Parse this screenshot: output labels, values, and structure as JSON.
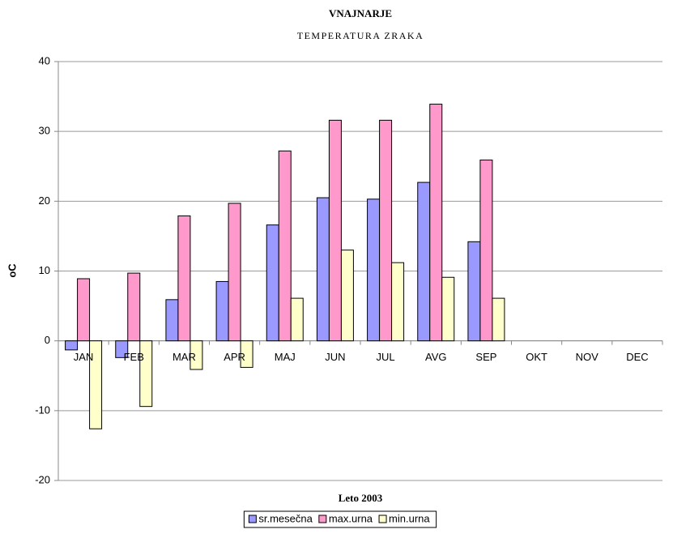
{
  "chart_data": {
    "type": "bar",
    "title": "VNAJNARJE",
    "subtitle": "TEMPERATURA ZRAKA",
    "x_label": "Leto 2003",
    "y_label": "oC",
    "categories": [
      "JAN",
      "FEB",
      "MAR",
      "APR",
      "MAJ",
      "JUN",
      "JUL",
      "AVG",
      "SEP",
      "OKT",
      "NOV",
      "DEC"
    ],
    "series": [
      {
        "name": "sr.mesečna",
        "color": "#9999ff",
        "values": [
          -1.3,
          -2.4,
          5.9,
          8.5,
          16.6,
          20.5,
          20.3,
          22.7,
          14.2,
          null,
          null,
          null
        ]
      },
      {
        "name": "max.urna",
        "color": "#ff99cc",
        "values": [
          8.9,
          9.7,
          17.9,
          19.7,
          27.2,
          31.6,
          31.6,
          33.9,
          25.9,
          null,
          null,
          null
        ]
      },
      {
        "name": "min.urna",
        "color": "#ffffcc",
        "values": [
          -12.6,
          -9.4,
          -4.1,
          -3.8,
          6.1,
          13.0,
          11.2,
          9.1,
          6.1,
          null,
          null,
          null
        ]
      }
    ],
    "ylim": [
      -20,
      40
    ],
    "yticks": [
      -20,
      -10,
      0,
      10,
      20,
      30,
      40
    ],
    "grid": true,
    "legend": "bottom"
  }
}
